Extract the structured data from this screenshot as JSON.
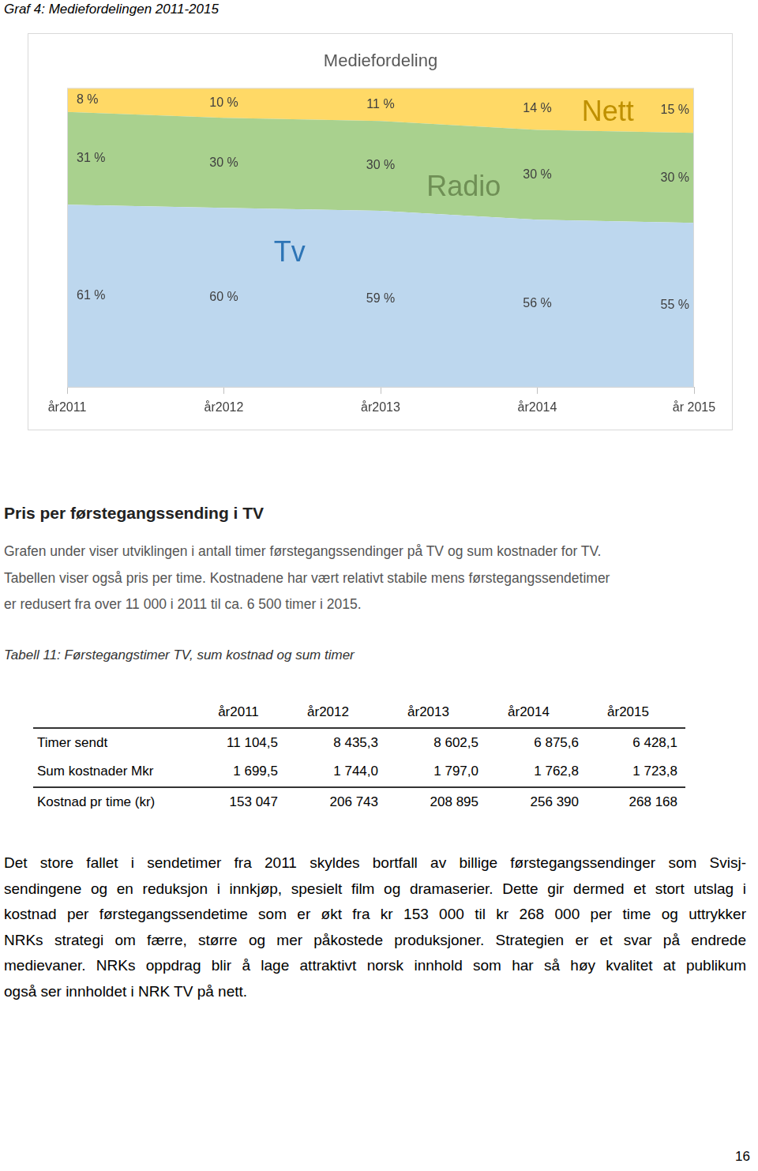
{
  "caption": "Graf 4: Mediefordelingen 2011-2015",
  "chart_data": {
    "type": "area",
    "title": "Mediefordeling",
    "categories": [
      "år2011",
      "år2012",
      "år2013",
      "år2014",
      "år 2015"
    ],
    "series": [
      {
        "name": "Tv",
        "color": "#bdd7ee",
        "values": [
          61,
          60,
          59,
          56,
          55
        ],
        "value_labels": [
          "61 %",
          "60 %",
          "59 %",
          "56 %",
          "55 %"
        ]
      },
      {
        "name": "Radio",
        "color": "#a9d18e",
        "values": [
          31,
          30,
          30,
          30,
          30
        ],
        "value_labels": [
          "31 %",
          "30 %",
          "30 %",
          "30 %",
          "30 %"
        ]
      },
      {
        "name": "Nett",
        "color": "#ffd966",
        "values": [
          8,
          10,
          11,
          14,
          15
        ],
        "value_labels": [
          "8 %",
          "10 %",
          "11 %",
          "14 %",
          "15 %"
        ]
      }
    ],
    "stacked": true,
    "ylim": [
      0,
      100
    ],
    "tick_labels": "x",
    "data_labels": true,
    "grid": false
  },
  "section": {
    "heading": "Pris per førstegangssending i TV",
    "paragraph": [
      "Grafen under viser utviklingen i antall timer førstegangssendinger på TV og sum kostnader for TV.",
      "Tabellen viser også pris per time. Kostnadene har vært relativt stabile mens førstegangssendetimer",
      "er redusert fra over 11 000 i 2011 til ca. 6 500 timer i 2015."
    ]
  },
  "table": {
    "title": "Tabell 11: Førstegangstimer TV, sum kostnad og sum timer",
    "columns": [
      "år2011",
      "år2012",
      "år2013",
      "år2014",
      "år2015"
    ],
    "rows": [
      [
        "Timer sendt",
        "11 104,5",
        "8 435,3",
        "8 602,5",
        "6 875,6",
        "6 428,1"
      ],
      [
        "Sum kostnader Mkr",
        "1 699,5",
        "1 744,0",
        "1 797,0",
        "1 762,8",
        "1 723,8"
      ],
      [
        "Kostnad pr time (kr)",
        "153 047",
        "206 743",
        "208 895",
        "256 390",
        "268 168"
      ]
    ]
  },
  "closing_paragraph": [
    "Det store fallet i sendetimer fra 2011 skyldes bortfall av billige førstegangssendinger som Svisj-",
    "sendingene og en reduksjon i innkjøp, spesielt film og dramaserier. Dette gir dermed et stort utslag i",
    "kostnad per førstegangssendetime som er økt fra kr 153 000 til kr 268 000 per time og uttrykker",
    "NRKs strategi om færre, større og mer påkostede produksjoner. Strategien er et svar på endrede",
    "medievaner. NRKs oppdrag blir å lage attraktivt norsk innhold som har så høy kvalitet at publikum",
    "også ser innholdet i NRK TV på nett."
  ],
  "page_number": "16"
}
